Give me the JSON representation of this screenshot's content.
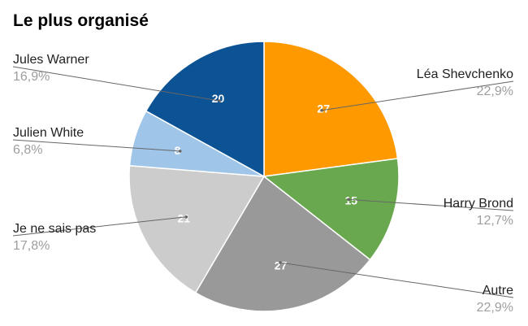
{
  "chart_data": {
    "type": "pie",
    "title": "Le plus organisé",
    "slices": [
      {
        "label": "Léa Shevchenko",
        "value": 27,
        "percent_label": "22,9%",
        "value_label": "27",
        "color": "#ff9900"
      },
      {
        "label": "Harry Brond",
        "value": 15,
        "percent_label": "12,7%",
        "value_label": "15",
        "color": "#6aa84f"
      },
      {
        "label": "Autre",
        "value": 27,
        "percent_label": "22,9%",
        "value_label": "27",
        "color": "#999999"
      },
      {
        "label": "Je ne sais pas",
        "value": 21,
        "percent_label": "17,8%",
        "value_label": "21",
        "color": "#cccccc"
      },
      {
        "label": "Julien White",
        "value": 8,
        "percent_label": "6,8%",
        "value_label": "8",
        "color": "#9fc5e8"
      },
      {
        "label": "Jules Warner",
        "value": 20,
        "percent_label": "16,9%",
        "value_label": "20",
        "color": "#0b5394"
      }
    ]
  }
}
